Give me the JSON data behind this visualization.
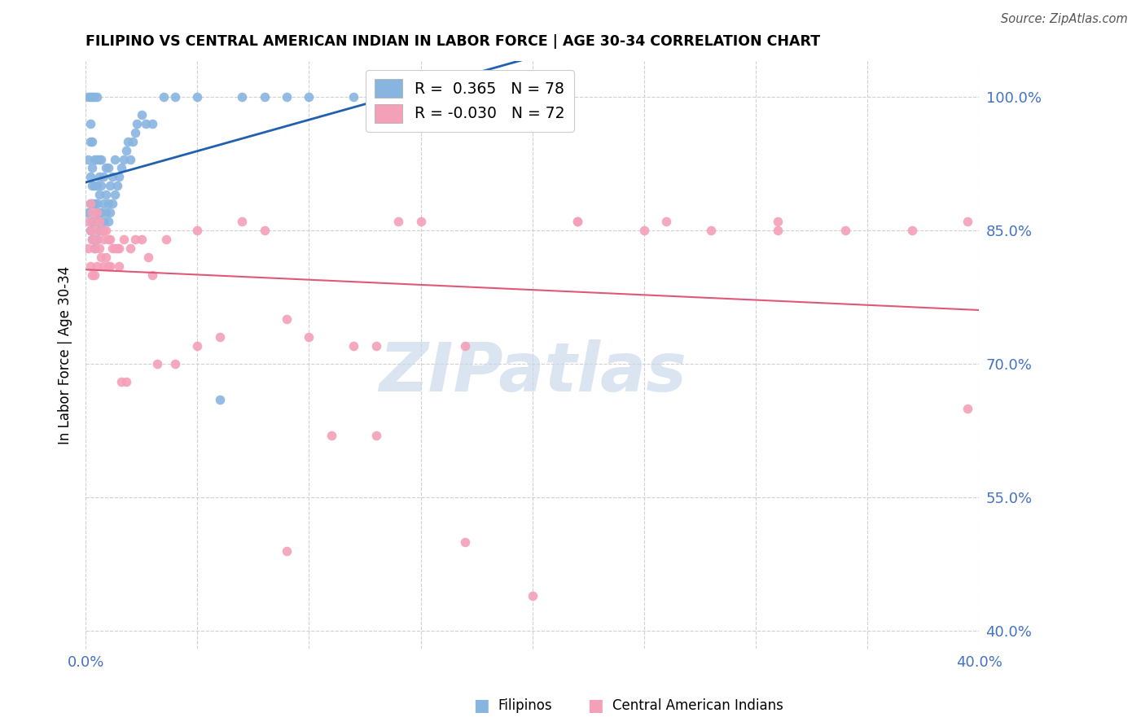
{
  "title": "FILIPINO VS CENTRAL AMERICAN INDIAN IN LABOR FORCE | AGE 30-34 CORRELATION CHART",
  "source": "Source: ZipAtlas.com",
  "ylabel": "In Labor Force | Age 30-34",
  "xlim": [
    0.0,
    0.4
  ],
  "ylim": [
    0.38,
    1.04
  ],
  "yticks": [
    0.4,
    0.55,
    0.7,
    0.85,
    1.0
  ],
  "ytick_labels": [
    "40.0%",
    "55.0%",
    "70.0%",
    "85.0%",
    "100.0%"
  ],
  "xticks": [
    0.0,
    0.05,
    0.1,
    0.15,
    0.2,
    0.25,
    0.3,
    0.35,
    0.4
  ],
  "xtick_labels": [
    "0.0%",
    "",
    "",
    "",
    "",
    "",
    "",
    "",
    "40.0%"
  ],
  "filipino_color": "#88b4e0",
  "central_american_color": "#f4a0b8",
  "trend_filipino_color": "#2060b0",
  "trend_central_american_color": "#e05878",
  "R_filipino": 0.365,
  "N_filipino": 78,
  "R_central": -0.03,
  "N_central": 72,
  "watermark_color": "#c8d8ec",
  "filipino_x": [
    0.001,
    0.001,
    0.001,
    0.002,
    0.002,
    0.002,
    0.002,
    0.002,
    0.002,
    0.003,
    0.003,
    0.003,
    0.003,
    0.003,
    0.003,
    0.003,
    0.004,
    0.004,
    0.004,
    0.004,
    0.004,
    0.004,
    0.005,
    0.005,
    0.005,
    0.005,
    0.005,
    0.005,
    0.005,
    0.006,
    0.006,
    0.006,
    0.006,
    0.006,
    0.007,
    0.007,
    0.007,
    0.007,
    0.008,
    0.008,
    0.008,
    0.009,
    0.009,
    0.009,
    0.01,
    0.01,
    0.01,
    0.011,
    0.011,
    0.012,
    0.012,
    0.013,
    0.013,
    0.014,
    0.015,
    0.016,
    0.017,
    0.018,
    0.019,
    0.02,
    0.021,
    0.022,
    0.023,
    0.025,
    0.027,
    0.03,
    0.035,
    0.04,
    0.05,
    0.06,
    0.07,
    0.08,
    0.09,
    0.1,
    0.12,
    0.14,
    0.16,
    0.18
  ],
  "filipino_y": [
    0.87,
    0.93,
    1.0,
    0.85,
    0.88,
    0.91,
    0.95,
    0.97,
    1.0,
    0.84,
    0.86,
    0.88,
    0.9,
    0.92,
    0.95,
    1.0,
    0.83,
    0.86,
    0.88,
    0.9,
    0.93,
    1.0,
    0.84,
    0.86,
    0.87,
    0.88,
    0.9,
    0.93,
    1.0,
    0.85,
    0.87,
    0.89,
    0.91,
    0.93,
    0.85,
    0.87,
    0.9,
    0.93,
    0.86,
    0.88,
    0.91,
    0.87,
    0.89,
    0.92,
    0.86,
    0.88,
    0.92,
    0.87,
    0.9,
    0.88,
    0.91,
    0.89,
    0.93,
    0.9,
    0.91,
    0.92,
    0.93,
    0.94,
    0.95,
    0.93,
    0.95,
    0.96,
    0.97,
    0.98,
    0.97,
    0.97,
    1.0,
    1.0,
    1.0,
    0.66,
    1.0,
    1.0,
    1.0,
    1.0,
    1.0,
    1.0,
    1.0,
    1.0
  ],
  "central_x": [
    0.001,
    0.001,
    0.002,
    0.002,
    0.002,
    0.003,
    0.003,
    0.003,
    0.004,
    0.004,
    0.004,
    0.005,
    0.005,
    0.005,
    0.006,
    0.006,
    0.007,
    0.007,
    0.008,
    0.008,
    0.009,
    0.009,
    0.01,
    0.01,
    0.011,
    0.011,
    0.012,
    0.013,
    0.014,
    0.015,
    0.016,
    0.017,
    0.018,
    0.02,
    0.022,
    0.025,
    0.028,
    0.032,
    0.036,
    0.04,
    0.05,
    0.06,
    0.07,
    0.08,
    0.09,
    0.1,
    0.11,
    0.12,
    0.13,
    0.14,
    0.15,
    0.17,
    0.2,
    0.22,
    0.25,
    0.28,
    0.31,
    0.34,
    0.37,
    0.395,
    0.395,
    0.31,
    0.26,
    0.22,
    0.17,
    0.13,
    0.09,
    0.05,
    0.03,
    0.015,
    0.008,
    0.004
  ],
  "central_y": [
    0.86,
    0.83,
    0.88,
    0.85,
    0.81,
    0.87,
    0.84,
    0.8,
    0.86,
    0.83,
    0.8,
    0.87,
    0.84,
    0.81,
    0.86,
    0.83,
    0.85,
    0.82,
    0.84,
    0.81,
    0.85,
    0.82,
    0.84,
    0.81,
    0.84,
    0.81,
    0.83,
    0.83,
    0.83,
    0.81,
    0.68,
    0.84,
    0.68,
    0.83,
    0.84,
    0.84,
    0.82,
    0.7,
    0.84,
    0.7,
    0.72,
    0.73,
    0.86,
    0.85,
    0.75,
    0.73,
    0.62,
    0.72,
    0.62,
    0.86,
    0.86,
    0.5,
    0.44,
    0.86,
    0.85,
    0.85,
    0.85,
    0.85,
    0.85,
    0.65,
    0.86,
    0.86,
    0.86,
    0.86,
    0.72,
    0.72,
    0.49,
    0.85,
    0.8,
    0.83,
    0.85,
    0.85
  ]
}
